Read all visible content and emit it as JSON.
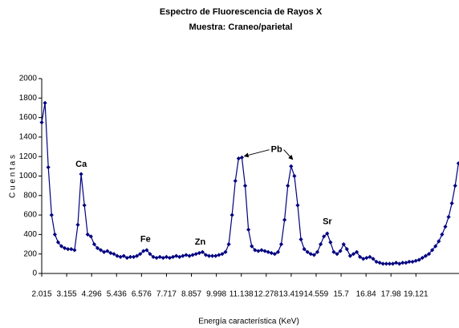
{
  "chart_data": {
    "type": "line",
    "title": "Espectro de Fluorescencia de Rayos X",
    "subtitle": "Muestra: Craneo/parietal",
    "x_label": "Energía característica (KeV)",
    "y_label": "C u e n t a s",
    "x": [
      2.015,
      2.165,
      2.315,
      2.465,
      2.615,
      2.765,
      2.915,
      3.065,
      3.215,
      3.365,
      3.515,
      3.665,
      3.815,
      3.965,
      4.115,
      4.265,
      4.415,
      4.565,
      4.715,
      4.865,
      5.015,
      5.165,
      5.315,
      5.465,
      5.615,
      5.765,
      5.915,
      6.065,
      6.215,
      6.365,
      6.515,
      6.665,
      6.815,
      6.965,
      7.115,
      7.265,
      7.415,
      7.565,
      7.715,
      7.865,
      8.015,
      8.165,
      8.315,
      8.465,
      8.615,
      8.765,
      8.915,
      9.065,
      9.215,
      9.365,
      9.515,
      9.665,
      9.815,
      9.965,
      10.115,
      10.265,
      10.415,
      10.565,
      10.715,
      10.865,
      11.015,
      11.165,
      11.315,
      11.465,
      11.615,
      11.765,
      11.915,
      12.065,
      12.215,
      12.365,
      12.515,
      12.665,
      12.815,
      12.965,
      13.115,
      13.265,
      13.415,
      13.565,
      13.715,
      13.865,
      14.015,
      14.165,
      14.315,
      14.465,
      14.615,
      14.765,
      14.915,
      15.065,
      15.215,
      15.365,
      15.515,
      15.665,
      15.815,
      15.965,
      16.115,
      16.265,
      16.415,
      16.565,
      16.715,
      16.865,
      17.015,
      17.165,
      17.315,
      17.465,
      17.615,
      17.765,
      17.915,
      18.065,
      18.215,
      18.365,
      18.515,
      18.665,
      18.815,
      18.965,
      19.115,
      19.265,
      19.415,
      19.565,
      19.715,
      19.865,
      20.015,
      20.165,
      20.315,
      20.465,
      20.615,
      20.765,
      20.915,
      21.065
    ],
    "series": [
      {
        "color": "#000080",
        "values": [
          1550,
          1750,
          1090,
          600,
          400,
          320,
          280,
          260,
          250,
          250,
          240,
          500,
          1020,
          700,
          400,
          380,
          300,
          260,
          240,
          220,
          230,
          210,
          200,
          180,
          170,
          180,
          160,
          170,
          170,
          180,
          200,
          230,
          240,
          200,
          170,
          160,
          170,
          160,
          170,
          160,
          170,
          180,
          170,
          180,
          190,
          180,
          190,
          200,
          210,
          220,
          190,
          180,
          180,
          180,
          190,
          200,
          220,
          300,
          600,
          950,
          1180,
          1190,
          900,
          450,
          280,
          240,
          230,
          240,
          230,
          220,
          210,
          200,
          220,
          300,
          550,
          900,
          1100,
          1000,
          700,
          350,
          250,
          220,
          200,
          190,
          220,
          300,
          380,
          410,
          320,
          220,
          200,
          230,
          300,
          250,
          180,
          200,
          220,
          170,
          150,
          160,
          170,
          150,
          120,
          110,
          100,
          100,
          100,
          100,
          110,
          100,
          110,
          110,
          120,
          120,
          130,
          140,
          160,
          180,
          200,
          240,
          280,
          330,
          400,
          480,
          580,
          720,
          900,
          1130
        ]
      }
    ],
    "xlim": [
      2.015,
      21.09
    ],
    "xticks": [
      2.015,
      3.155,
      4.296,
      5.436,
      6.576,
      7.717,
      8.857,
      9.998,
      11.138,
      12.278,
      13.419,
      14.559,
      15.7,
      16.84,
      17.98,
      19.121
    ],
    "ylim": [
      0,
      2000
    ],
    "yticks": [
      0,
      200,
      400,
      600,
      800,
      1000,
      1200,
      1400,
      1600,
      1800,
      2000
    ],
    "annotations": [
      {
        "text": "Ca",
        "x": 3.82,
        "y": 1120
      },
      {
        "text": "Fe",
        "x": 6.76,
        "y": 350
      },
      {
        "text": "Zn",
        "x": 9.26,
        "y": 320
      },
      {
        "text": "Pb",
        "x": 12.75,
        "y": 1270
      },
      {
        "text": "Sr",
        "x": 15.07,
        "y": 530
      }
    ],
    "grid": false
  }
}
